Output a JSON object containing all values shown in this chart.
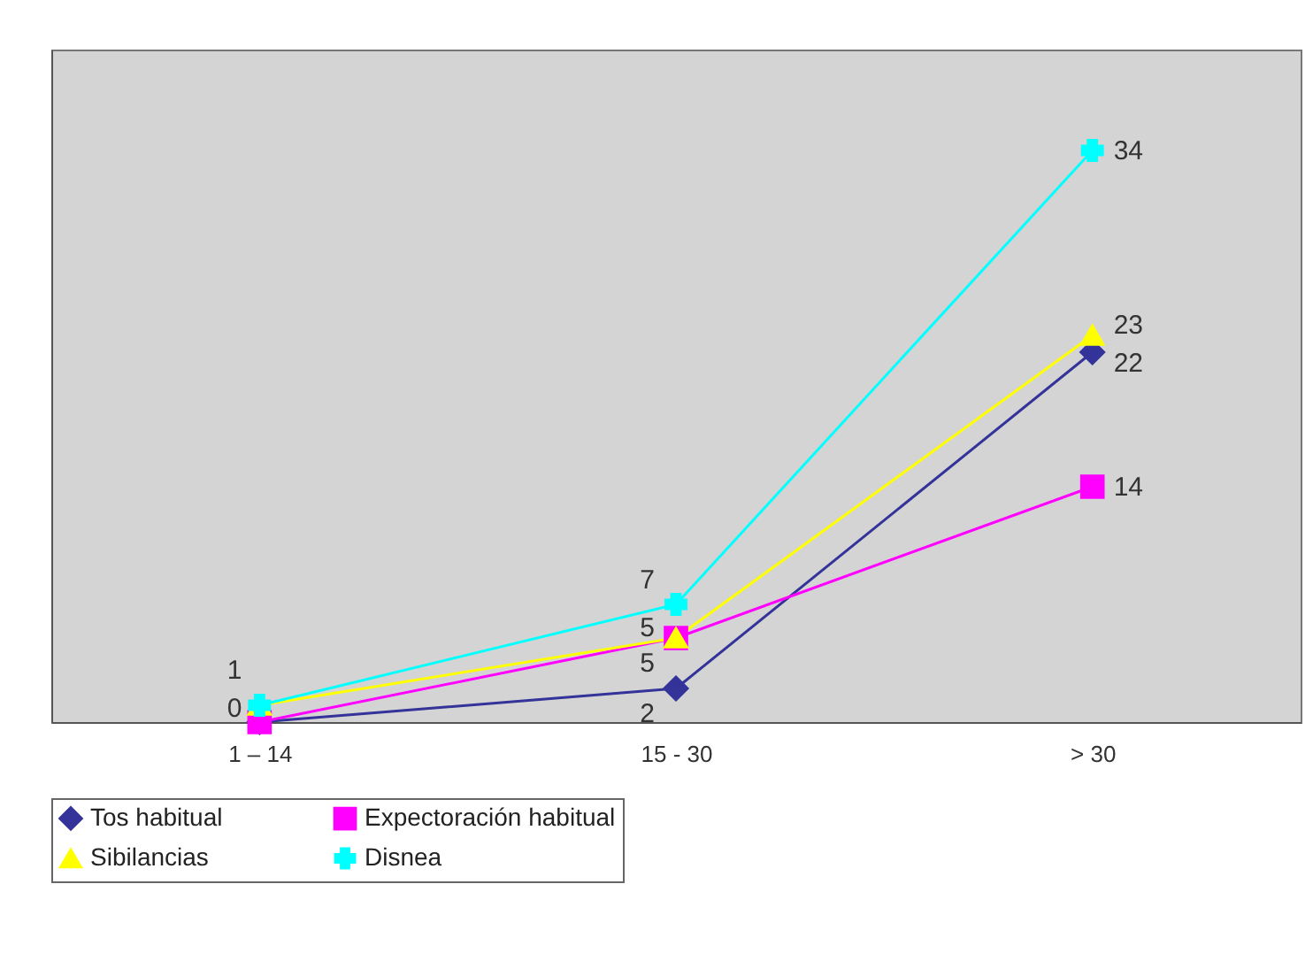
{
  "chart_data": {
    "type": "line",
    "categories": [
      "1 – 14",
      "15 - 30",
      "> 30"
    ],
    "series": [
      {
        "name": "Tos habitual",
        "color": "#333399",
        "marker": "diamond",
        "values": [
          0,
          2,
          22
        ],
        "value_labels": [
          "0",
          "2",
          "22"
        ]
      },
      {
        "name": "Expectoración habitual",
        "color": "#ff00ff",
        "marker": "square",
        "values": [
          0,
          5,
          14
        ],
        "value_labels": [
          null,
          "5",
          "14"
        ]
      },
      {
        "name": "Sibilancias",
        "color": "#ffff00",
        "marker": "triangle",
        "values": [
          1,
          5,
          23
        ],
        "value_labels": [
          null,
          "5",
          "23"
        ]
      },
      {
        "name": "Disnea",
        "color": "#00ffff",
        "marker": "cross",
        "values": [
          1,
          7,
          34
        ],
        "value_labels": [
          "1",
          "7",
          "34"
        ]
      }
    ],
    "ylim": [
      0,
      40
    ],
    "tick_labels": "x",
    "legend": "bottom"
  }
}
